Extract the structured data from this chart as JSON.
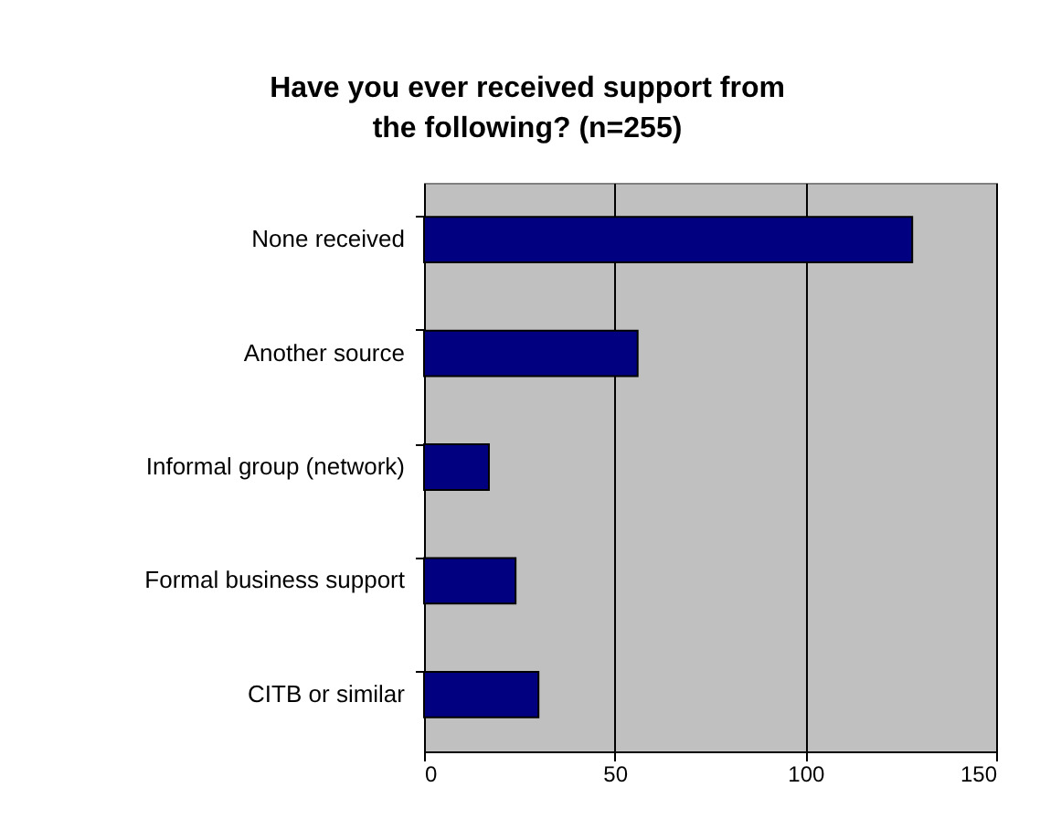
{
  "chart_data": {
    "type": "bar",
    "orientation": "horizontal",
    "title": "Have you ever received support from the following? (n=255)",
    "categories": [
      "None received",
      "Another source",
      "Informal group (network)",
      "Formal business support",
      "CITB or similar"
    ],
    "values": [
      128,
      56,
      17,
      24,
      30
    ],
    "color": "#000080",
    "xlim": [
      0,
      150
    ],
    "xticks": [
      0,
      50,
      100,
      150
    ],
    "grid": "x"
  }
}
